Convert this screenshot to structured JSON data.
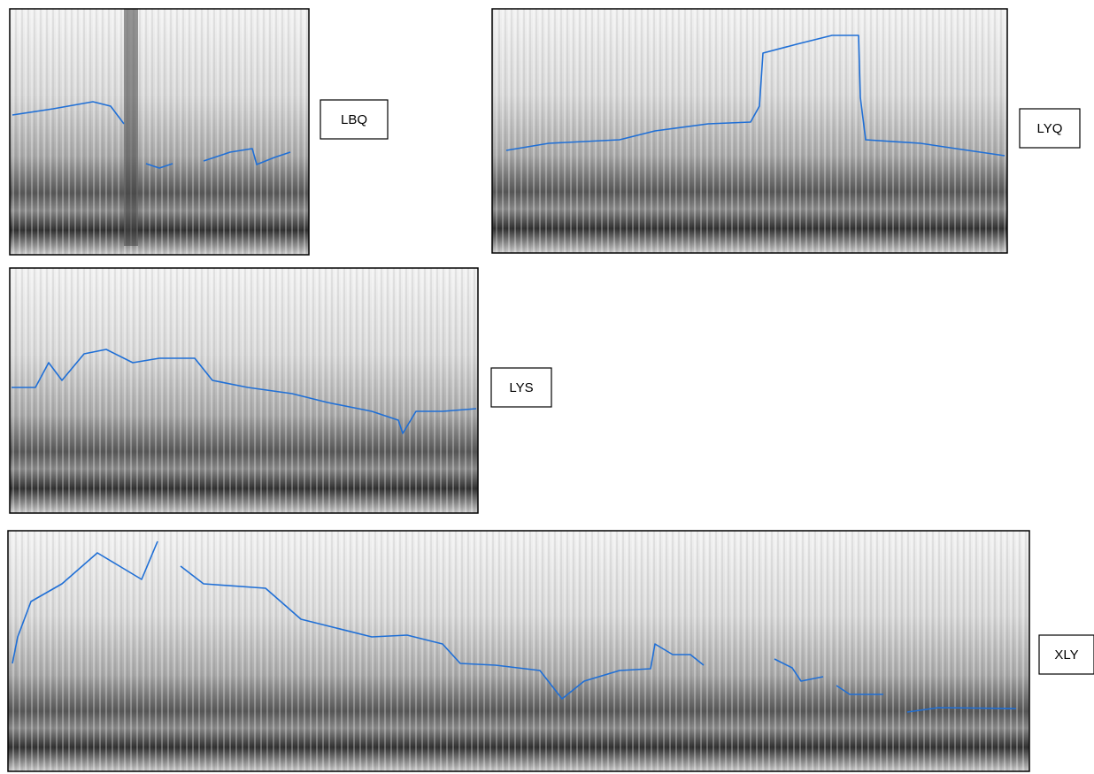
{
  "panels": [
    {
      "label": "LBQ"
    },
    {
      "label": "LYQ"
    },
    {
      "label": "LYS"
    },
    {
      "label": "XLY"
    }
  ]
}
